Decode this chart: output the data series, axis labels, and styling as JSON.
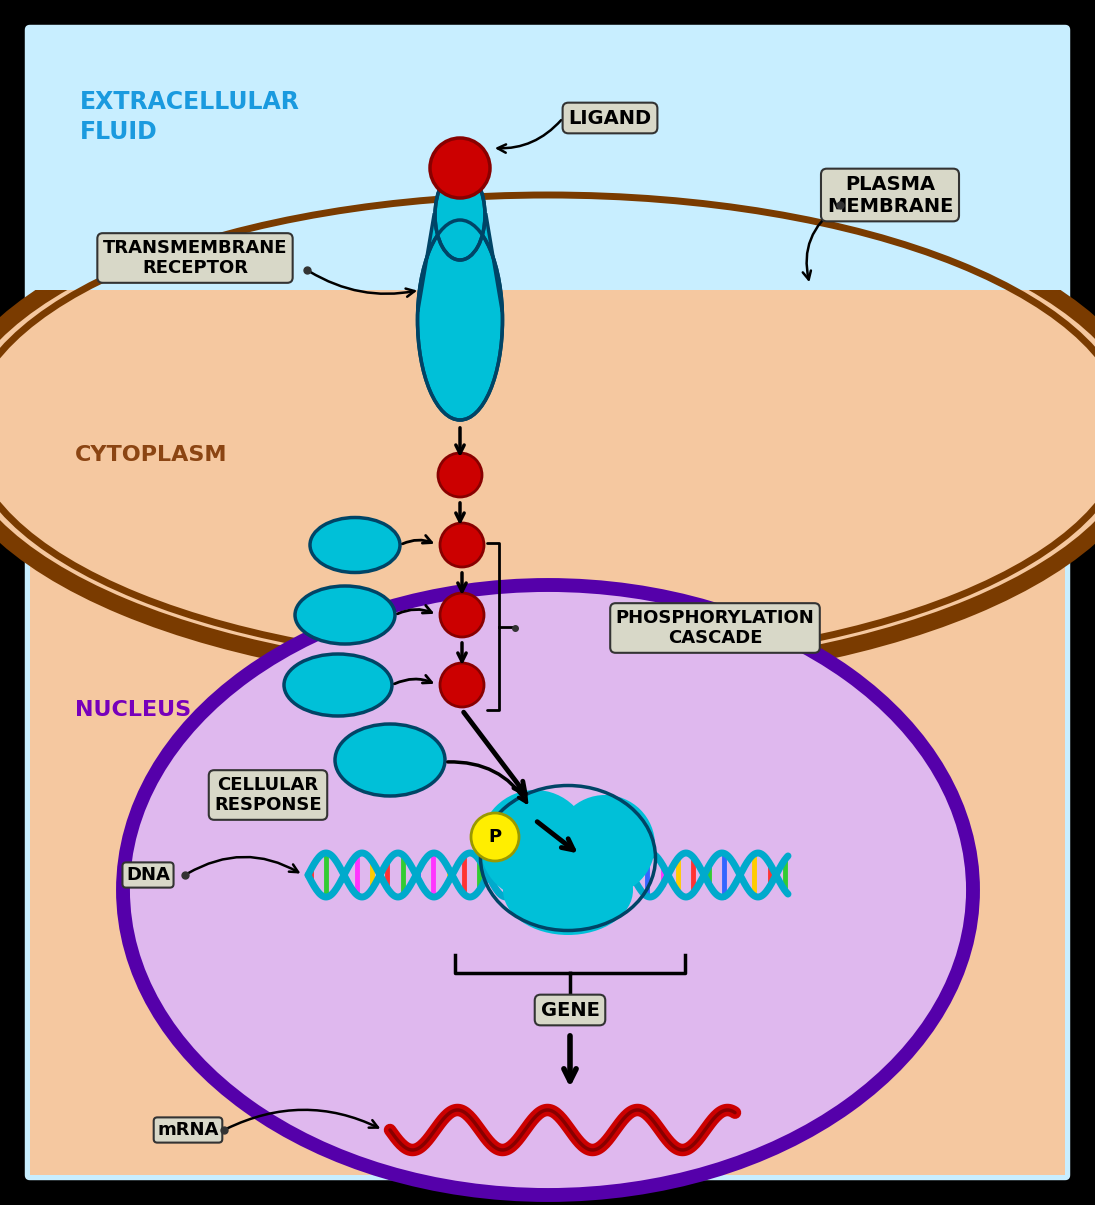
{
  "bg_color": "#000000",
  "extracellular_color": "#c8eeff",
  "cytoplasm_color": "#f5c8a0",
  "nucleus_color": "#dfb8ee",
  "membrane_border_color": "#7a3b00",
  "nucleus_border_color": "#5500aa",
  "cyan_color": "#00c0d8",
  "red_color": "#cc0000",
  "yellow_color": "#ffee00",
  "label_extracellular": "EXTRACELLULAR\nFLUID",
  "label_cytoplasm": "CYTOPLASM",
  "label_nucleus": "NUCLEUS",
  "label_ligand": "LIGAND",
  "label_transmembrane": "TRANSMEMBRANE\nRECEPTOR",
  "label_plasma": "PLASMA\nMEMBRANE",
  "label_phosphorylation": "PHOSPHORYLATION\nCASCADE",
  "label_cellular_response": "CELLULAR\nRESPONSE",
  "label_dna": "DNA",
  "label_gene": "GENE",
  "label_mrna": "mRNA",
  "label_p": "P",
  "box_facecolor": "#d8d8c8",
  "box_edgecolor": "#333333",
  "title_color_extracellular": "#1a9adf",
  "title_color_cytoplasm": "#8B4513",
  "title_color_nucleus": "#7700bb",
  "fig_width": 10.95,
  "fig_height": 12.05,
  "dpi": 100
}
